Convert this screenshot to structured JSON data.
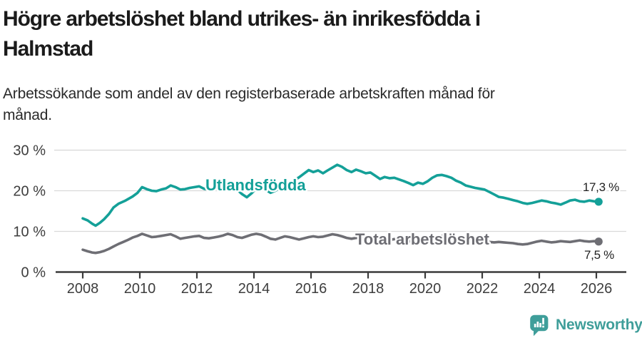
{
  "header": {
    "title": "Högre arbetslöshet bland utrikes- än inrikesfödda i Halmstad",
    "title_lines": [
      "Högre arbetslöshet bland utrikes- än inrikesfödda i",
      "Halmstad"
    ],
    "subtitle": "Arbetssökande som andel av den registerbaserade arbetskraften månad för månad.",
    "subtitle_lines": [
      "Arbetssökande som andel av den registerbaserade arbetskraften månad för",
      "månad."
    ]
  },
  "branding": {
    "logo_text": "Newsworthy",
    "brand_color": "#3f9e9a"
  },
  "colors": {
    "background": "#ffffff",
    "grid": "#d9d9d9",
    "axis": "#3a3a3a",
    "tick_label": "#3d3d3d",
    "value_label": "#1f1f1f",
    "title_text": "#1b1b1b",
    "subtitle_text": "#2a2a2a",
    "accent_teal": "#14a098",
    "accent_gray": "#6e6e74"
  },
  "chart_data": {
    "type": "line",
    "title": "Högre arbetslöshet bland utrikes- än inrikesfödda i Halmstad",
    "subtitle": "Arbetssökande som andel av den registerbaserade arbetskraften månad för månad.",
    "xlabel": "",
    "ylabel": "",
    "grid": "horizontal",
    "legend_position": "inline-labels",
    "x_range": [
      2007.05,
      2027.05
    ],
    "y_range": [
      0,
      31.5
    ],
    "x_ticks": [
      2008,
      2010,
      2012,
      2014,
      2016,
      2018,
      2020,
      2022,
      2024,
      2026
    ],
    "y_ticks": [
      {
        "value": 0,
        "label": "0 %"
      },
      {
        "value": 10,
        "label": "10 %"
      },
      {
        "value": 20,
        "label": "20 %"
      },
      {
        "value": 30,
        "label": "30 %"
      }
    ],
    "series": [
      {
        "name": "Utlandsfödda",
        "color": "#14a098",
        "end_value": 17.3,
        "end_label": "17,3 %",
        "points": [
          [
            2008.0,
            13.2
          ],
          [
            2008.17,
            12.7
          ],
          [
            2008.33,
            11.9
          ],
          [
            2008.45,
            11.4
          ],
          [
            2008.6,
            12.1
          ],
          [
            2008.75,
            13.0
          ],
          [
            2008.92,
            14.3
          ],
          [
            2009.08,
            15.9
          ],
          [
            2009.25,
            16.8
          ],
          [
            2009.5,
            17.6
          ],
          [
            2009.75,
            18.6
          ],
          [
            2009.92,
            19.5
          ],
          [
            2010.08,
            20.9
          ],
          [
            2010.25,
            20.4
          ],
          [
            2010.42,
            20.0
          ],
          [
            2010.58,
            19.9
          ],
          [
            2010.75,
            20.3
          ],
          [
            2010.92,
            20.6
          ],
          [
            2011.08,
            21.3
          ],
          [
            2011.25,
            20.9
          ],
          [
            2011.42,
            20.3
          ],
          [
            2011.58,
            20.4
          ],
          [
            2011.75,
            20.7
          ],
          [
            2011.92,
            20.9
          ],
          [
            2012.08,
            21.1
          ],
          [
            2012.25,
            20.5
          ],
          [
            2012.42,
            20.3
          ],
          [
            2012.58,
            20.6
          ],
          [
            2012.75,
            21.0
          ],
          [
            2012.92,
            21.2
          ],
          [
            2013.08,
            21.4
          ],
          [
            2013.25,
            21.1
          ],
          [
            2013.42,
            20.2
          ],
          [
            2013.58,
            19.2
          ],
          [
            2013.75,
            18.4
          ],
          [
            2013.92,
            19.4
          ],
          [
            2014.08,
            20.6
          ],
          [
            2014.25,
            21.0
          ],
          [
            2014.42,
            20.2
          ],
          [
            2014.58,
            19.5
          ],
          [
            2014.75,
            20.0
          ],
          [
            2014.92,
            20.8
          ],
          [
            2015.08,
            21.4
          ],
          [
            2015.25,
            21.9
          ],
          [
            2015.42,
            22.6
          ],
          [
            2015.58,
            23.3
          ],
          [
            2015.75,
            24.2
          ],
          [
            2015.92,
            25.1
          ],
          [
            2016.08,
            24.6
          ],
          [
            2016.25,
            25.0
          ],
          [
            2016.42,
            24.3
          ],
          [
            2016.58,
            25.0
          ],
          [
            2016.75,
            25.7
          ],
          [
            2016.92,
            26.4
          ],
          [
            2017.08,
            25.9
          ],
          [
            2017.25,
            25.1
          ],
          [
            2017.42,
            24.6
          ],
          [
            2017.58,
            25.2
          ],
          [
            2017.75,
            24.8
          ],
          [
            2017.92,
            24.3
          ],
          [
            2018.08,
            24.5
          ],
          [
            2018.25,
            23.7
          ],
          [
            2018.42,
            22.9
          ],
          [
            2018.58,
            23.4
          ],
          [
            2018.75,
            23.1
          ],
          [
            2018.92,
            23.2
          ],
          [
            2019.08,
            22.8
          ],
          [
            2019.25,
            22.4
          ],
          [
            2019.42,
            21.9
          ],
          [
            2019.58,
            21.4
          ],
          [
            2019.75,
            22.0
          ],
          [
            2019.92,
            21.7
          ],
          [
            2020.08,
            22.3
          ],
          [
            2020.25,
            23.2
          ],
          [
            2020.42,
            23.8
          ],
          [
            2020.58,
            23.9
          ],
          [
            2020.75,
            23.6
          ],
          [
            2020.92,
            23.2
          ],
          [
            2021.08,
            22.5
          ],
          [
            2021.25,
            22.0
          ],
          [
            2021.42,
            21.3
          ],
          [
            2021.58,
            21.0
          ],
          [
            2021.75,
            20.7
          ],
          [
            2021.92,
            20.5
          ],
          [
            2022.08,
            20.3
          ],
          [
            2022.25,
            19.7
          ],
          [
            2022.42,
            19.1
          ],
          [
            2022.58,
            18.5
          ],
          [
            2022.75,
            18.3
          ],
          [
            2022.92,
            18.0
          ],
          [
            2023.08,
            17.7
          ],
          [
            2023.25,
            17.4
          ],
          [
            2023.42,
            17.0
          ],
          [
            2023.58,
            16.8
          ],
          [
            2023.75,
            17.0
          ],
          [
            2023.92,
            17.3
          ],
          [
            2024.08,
            17.6
          ],
          [
            2024.25,
            17.4
          ],
          [
            2024.42,
            17.1
          ],
          [
            2024.58,
            16.9
          ],
          [
            2024.75,
            16.6
          ],
          [
            2024.92,
            17.1
          ],
          [
            2025.08,
            17.6
          ],
          [
            2025.25,
            17.8
          ],
          [
            2025.42,
            17.4
          ],
          [
            2025.58,
            17.3
          ],
          [
            2025.75,
            17.6
          ],
          [
            2025.92,
            17.4
          ],
          [
            2026.08,
            17.3
          ]
        ]
      },
      {
        "name": "Total arbetslöshet",
        "color": "#6e6e74",
        "end_value": 7.5,
        "end_label": "7,5 %",
        "points": [
          [
            2008.0,
            5.5
          ],
          [
            2008.17,
            5.1
          ],
          [
            2008.33,
            4.8
          ],
          [
            2008.45,
            4.7
          ],
          [
            2008.6,
            4.9
          ],
          [
            2008.75,
            5.2
          ],
          [
            2008.92,
            5.7
          ],
          [
            2009.08,
            6.3
          ],
          [
            2009.25,
            6.9
          ],
          [
            2009.42,
            7.4
          ],
          [
            2009.58,
            7.9
          ],
          [
            2009.75,
            8.5
          ],
          [
            2009.92,
            8.9
          ],
          [
            2010.08,
            9.4
          ],
          [
            2010.25,
            9.0
          ],
          [
            2010.42,
            8.6
          ],
          [
            2010.58,
            8.7
          ],
          [
            2010.75,
            8.9
          ],
          [
            2010.92,
            9.1
          ],
          [
            2011.08,
            9.3
          ],
          [
            2011.25,
            8.8
          ],
          [
            2011.42,
            8.2
          ],
          [
            2011.58,
            8.4
          ],
          [
            2011.75,
            8.6
          ],
          [
            2011.92,
            8.8
          ],
          [
            2012.08,
            8.9
          ],
          [
            2012.25,
            8.4
          ],
          [
            2012.42,
            8.3
          ],
          [
            2012.58,
            8.5
          ],
          [
            2012.75,
            8.7
          ],
          [
            2012.92,
            9.0
          ],
          [
            2013.08,
            9.4
          ],
          [
            2013.25,
            9.1
          ],
          [
            2013.42,
            8.6
          ],
          [
            2013.58,
            8.4
          ],
          [
            2013.75,
            8.8
          ],
          [
            2013.92,
            9.2
          ],
          [
            2014.08,
            9.4
          ],
          [
            2014.25,
            9.2
          ],
          [
            2014.42,
            8.7
          ],
          [
            2014.58,
            8.2
          ],
          [
            2014.75,
            8.0
          ],
          [
            2014.92,
            8.4
          ],
          [
            2015.08,
            8.8
          ],
          [
            2015.25,
            8.6
          ],
          [
            2015.42,
            8.3
          ],
          [
            2015.58,
            8.0
          ],
          [
            2015.75,
            8.3
          ],
          [
            2015.92,
            8.6
          ],
          [
            2016.08,
            8.8
          ],
          [
            2016.25,
            8.6
          ],
          [
            2016.42,
            8.7
          ],
          [
            2016.58,
            9.0
          ],
          [
            2016.75,
            9.3
          ],
          [
            2016.92,
            9.1
          ],
          [
            2017.08,
            8.8
          ],
          [
            2017.25,
            8.4
          ],
          [
            2017.42,
            8.2
          ],
          [
            2017.58,
            8.4
          ],
          [
            2017.75,
            8.3
          ],
          [
            2017.92,
            8.5
          ],
          [
            2018.08,
            8.4
          ],
          [
            2018.25,
            8.1
          ],
          [
            2018.42,
            7.9
          ],
          [
            2018.58,
            7.8
          ],
          [
            2018.75,
            7.9
          ],
          [
            2018.92,
            8.1
          ],
          [
            2019.08,
            8.0
          ],
          [
            2019.25,
            7.8
          ],
          [
            2019.42,
            7.6
          ],
          [
            2019.58,
            7.5
          ],
          [
            2019.75,
            7.7
          ],
          [
            2019.92,
            7.9
          ],
          [
            2020.08,
            8.1
          ],
          [
            2020.25,
            8.5
          ],
          [
            2020.42,
            8.8
          ],
          [
            2020.58,
            8.9
          ],
          [
            2020.75,
            8.7
          ],
          [
            2020.92,
            8.5
          ],
          [
            2021.08,
            8.3
          ],
          [
            2021.25,
            8.0
          ],
          [
            2021.42,
            7.8
          ],
          [
            2021.58,
            7.7
          ],
          [
            2021.75,
            7.6
          ],
          [
            2021.92,
            7.5
          ],
          [
            2022.08,
            7.5
          ],
          [
            2022.25,
            7.4
          ],
          [
            2022.42,
            7.3
          ],
          [
            2022.58,
            7.4
          ],
          [
            2022.75,
            7.3
          ],
          [
            2022.92,
            7.2
          ],
          [
            2023.08,
            7.1
          ],
          [
            2023.25,
            6.9
          ],
          [
            2023.42,
            6.8
          ],
          [
            2023.58,
            6.9
          ],
          [
            2023.75,
            7.2
          ],
          [
            2023.92,
            7.5
          ],
          [
            2024.08,
            7.7
          ],
          [
            2024.25,
            7.5
          ],
          [
            2024.42,
            7.3
          ],
          [
            2024.58,
            7.4
          ],
          [
            2024.75,
            7.6
          ],
          [
            2024.92,
            7.5
          ],
          [
            2025.08,
            7.4
          ],
          [
            2025.25,
            7.6
          ],
          [
            2025.42,
            7.8
          ],
          [
            2025.58,
            7.6
          ],
          [
            2025.75,
            7.5
          ],
          [
            2025.92,
            7.6
          ],
          [
            2026.08,
            7.5
          ]
        ]
      }
    ]
  }
}
